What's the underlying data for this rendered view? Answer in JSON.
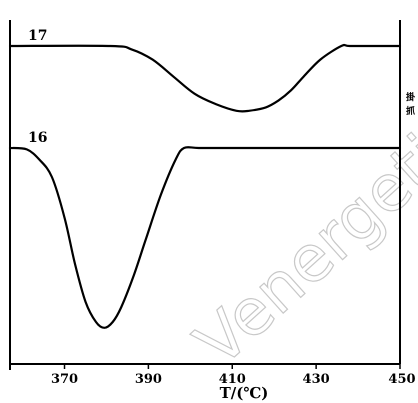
{
  "chart_data": {
    "type": "line",
    "xlabel": "T/(℃)",
    "xlim": [
      357,
      450
    ],
    "x_ticks": [
      370,
      390,
      410,
      430,
      450
    ],
    "x_tick_labels": [
      "370",
      "390",
      "410",
      "430",
      "450"
    ],
    "y_axis_shown": false,
    "grid": false,
    "series": [
      {
        "name": "17",
        "x": [
          357,
          381,
          386,
          391,
          396,
          401,
          406,
          411,
          414,
          418,
          421,
          424,
          427,
          431,
          436,
          438,
          445,
          450
        ],
        "y": [
          1.0,
          1.0,
          0.99,
          0.96,
          0.91,
          0.86,
          0.83,
          0.81,
          0.81,
          0.82,
          0.84,
          0.87,
          0.91,
          0.96,
          1.0,
          1.0,
          1.0,
          1.0
        ]
      },
      {
        "name": "16",
        "x": [
          357,
          361,
          364,
          367,
          370,
          372.5,
          375,
          377.5,
          379.5,
          381.5,
          383.5,
          386.5,
          389.5,
          393,
          396.5,
          398.5,
          402,
          410,
          420,
          430,
          440,
          450
        ],
        "y": [
          0.0,
          -0.005,
          -0.04,
          -0.1,
          -0.24,
          -0.4,
          -0.53,
          -0.6,
          -0.62,
          -0.6,
          -0.55,
          -0.44,
          -0.31,
          -0.16,
          -0.04,
          0.0,
          0.0,
          0.0,
          0.0,
          0.0,
          0.0,
          0.0
        ]
      }
    ]
  },
  "watermark_text": "Venergetic",
  "side_marks": [
    "掛",
    "抓"
  ]
}
